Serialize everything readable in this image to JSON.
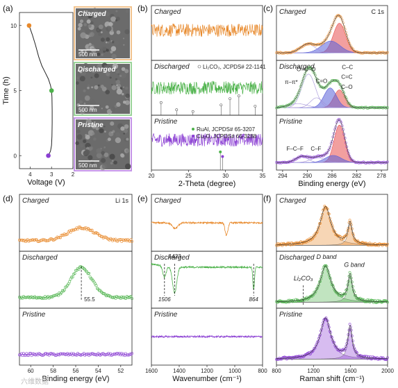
{
  "colors": {
    "charged": "#e8892b",
    "discharged": "#4cb24a",
    "pristine": "#8b3fd3",
    "red_peak": "#e85050",
    "blue_peak": "#5a60d8",
    "sem_charged_border": "#f2c38e",
    "sem_discharged_border": "#9bd49a",
    "sem_pristine_border": "#c594e8"
  },
  "watermark": "六维数据",
  "chart_data": [
    {
      "id": "a",
      "panel_label": "(a)",
      "type": "line",
      "xlabel": "Voltage (V)",
      "ylabel": "Time (h)",
      "xlim": [
        4.5,
        2.0
      ],
      "ylim": [
        -1.0,
        11.0
      ],
      "xticks": [
        4,
        3,
        2
      ],
      "yticks": [
        0,
        5,
        10
      ],
      "x": [
        4.05,
        3.9,
        3.75,
        3.6,
        3.45,
        3.3,
        3.15,
        3.05,
        3.0,
        2.98,
        2.97,
        2.97,
        2.98,
        3.0,
        3.05,
        3.15
      ],
      "y": [
        10.0,
        9.3,
        8.5,
        7.6,
        6.9,
        6.4,
        5.9,
        5.4,
        5.0,
        4.5,
        3.5,
        2.5,
        1.5,
        0.8,
        0.35,
        0.0
      ],
      "markers": [
        {
          "x": 4.05,
          "y": 10.0,
          "state": "charged"
        },
        {
          "x": 3.0,
          "y": 5.0,
          "state": "discharged"
        },
        {
          "x": 3.15,
          "y": 0.0,
          "state": "pristine"
        }
      ],
      "sem_panels": [
        {
          "state": "charged",
          "label": "Charged",
          "scalebar": "500 nm"
        },
        {
          "state": "discharged",
          "label": "Discharged",
          "scalebar": "500 nm"
        },
        {
          "state": "pristine",
          "label": "Pristine",
          "scalebar": "500 nm"
        }
      ]
    },
    {
      "id": "b",
      "panel_label": "(b)",
      "type": "line",
      "xlabel": "2-Theta (degree)",
      "xlim": [
        20,
        35
      ],
      "xticks": [
        20,
        25,
        30,
        35
      ],
      "subpanels": [
        {
          "state": "charged",
          "title": "Charged",
          "level": 0.5,
          "noise": 0.12
        },
        {
          "state": "discharged",
          "title": "Discharged",
          "level": 0.5,
          "noise": 0.12,
          "legend": "Li₂CO₃, JCPDS# 22-1141",
          "ref_lines": [
            {
              "x": 21.3,
              "h": 0.42
            },
            {
              "x": 23.4,
              "h": 0.18
            },
            {
              "x": 25.6,
              "h": 0.12
            },
            {
              "x": 29.4,
              "h": 0.34
            },
            {
              "x": 30.6,
              "h": 0.55
            },
            {
              "x": 31.8,
              "h": 0.64
            },
            {
              "x": 34.0,
              "h": 0.3
            }
          ]
        },
        {
          "state": "pristine",
          "title": "Pristine",
          "level": 0.55,
          "noise": 0.12,
          "legend": [
            "RuAl, JCPDS# 65-3207",
            "Cu₂O, JCPDS# 65-3288"
          ],
          "ref_lines": [
            {
              "x": 29.3,
              "h": 0.6,
              "state": "discharged"
            },
            {
              "x": 29.6,
              "h": 0.45,
              "state": "pristine"
            }
          ]
        }
      ]
    },
    {
      "id": "c",
      "panel_label": "(c)",
      "type": "line",
      "xlabel": "Binding energy (eV)",
      "corner_label": "C 1s",
      "xlim": [
        295,
        277
      ],
      "xticks": [
        294,
        290,
        286,
        282,
        278
      ],
      "subpanels": [
        {
          "state": "charged",
          "title": "Charged",
          "peaks": [
            {
              "c": 284.8,
              "a": 0.75,
              "w": 1.0,
              "fill": "red_peak"
            },
            {
              "c": 286.2,
              "a": 0.3,
              "w": 1.5,
              "fill": "blue_peak"
            },
            {
              "c": 289.9,
              "a": 0.22,
              "w": 1.2
            }
          ],
          "annotations": []
        },
        {
          "state": "discharged",
          "title": "Discharged",
          "peaks": [
            {
              "c": 284.8,
              "a": 0.45,
              "w": 0.9,
              "fill": "red_peak"
            },
            {
              "c": 286.3,
              "a": 0.5,
              "w": 1.0,
              "fill": "blue_peak"
            },
            {
              "c": 288.5,
              "a": 0.25,
              "w": 1.0
            },
            {
              "c": 289.8,
              "a": 0.85,
              "w": 1.1
            },
            {
              "c": 291.5,
              "a": 0.1,
              "w": 1.5
            }
          ],
          "annotations": [
            {
              "text": "π–π*",
              "x": 292.6,
              "y": 0.72
            },
            {
              "text": "O=C–O",
              "x": 290.2,
              "y": 1.05
            },
            {
              "text": "C=O",
              "x": 287.7,
              "y": 0.75
            },
            {
              "text": "C–C",
              "x": 283.5,
              "y": 1.1
            },
            {
              "text": "C=C",
              "x": 283.6,
              "y": 0.85
            },
            {
              "text": "C–O",
              "x": 283.6,
              "y": 0.6
            }
          ]
        },
        {
          "state": "pristine",
          "title": "Pristine",
          "peaks": [
            {
              "c": 284.8,
              "a": 0.95,
              "w": 0.85,
              "fill": "red_peak"
            },
            {
              "c": 285.8,
              "a": 0.18,
              "w": 1.3,
              "fill": "blue_peak"
            },
            {
              "c": 288.3,
              "a": 0.12,
              "w": 1.2
            },
            {
              "c": 290.9,
              "a": 0.15,
              "w": 1.0
            }
          ],
          "annotations": [
            {
              "text": "F–C–F",
              "x": 292.0,
              "y": 0.42
            },
            {
              "text": "C–F",
              "x": 288.6,
              "y": 0.42
            }
          ]
        }
      ]
    },
    {
      "id": "d",
      "panel_label": "(d)",
      "type": "scatter",
      "xlabel": "Binding energy (eV)",
      "corner_label": "Li 1s",
      "xlim": [
        61,
        51
      ],
      "xticks": [
        60,
        58,
        56,
        54,
        52
      ],
      "subpanels": [
        {
          "state": "charged",
          "title": "Charged",
          "peaks": [
            {
              "c": 55.5,
              "a": 0.3,
              "w": 1.2
            }
          ]
        },
        {
          "state": "discharged",
          "title": "Discharged",
          "peaks": [
            {
              "c": 55.5,
              "a": 0.7,
              "w": 0.95
            }
          ],
          "marker_line": 55.5,
          "marker_label": "55.5"
        },
        {
          "state": "pristine",
          "title": "Pristine",
          "peaks": []
        }
      ]
    },
    {
      "id": "e",
      "panel_label": "(e)",
      "type": "line",
      "xlabel": "Wavenumber (cm⁻¹)",
      "xlim": [
        1600,
        800
      ],
      "xticks": [
        1600,
        1400,
        1200,
        1000,
        800
      ],
      "subpanels": [
        {
          "state": "charged",
          "title": "Charged",
          "dips": [
            {
              "c": 1430,
              "a": 0.1,
              "w": 20
            },
            {
              "c": 1060,
              "a": 0.22,
              "w": 10
            }
          ]
        },
        {
          "state": "discharged",
          "title": "Discharged",
          "dips": [
            {
              "c": 1506,
              "a": 0.2,
              "w": 12
            },
            {
              "c": 1433,
              "a": 0.45,
              "w": 15
            },
            {
              "c": 864,
              "a": 0.4,
              "w": 6
            }
          ],
          "annotations": [
            {
              "text": "1506",
              "x": 1506
            },
            {
              "text": "1433",
              "x": 1433
            },
            {
              "text": "864",
              "x": 864
            }
          ]
        },
        {
          "state": "pristine",
          "title": "Pristine",
          "dips": []
        }
      ]
    },
    {
      "id": "f",
      "panel_label": "(f)",
      "type": "line",
      "xlabel": "Raman shift (cm⁻¹)",
      "xlim": [
        800,
        2000
      ],
      "xticks": [
        800,
        1200,
        1600,
        2000
      ],
      "subpanels": [
        {
          "state": "charged",
          "title": "Charged",
          "d_peak": {
            "c": 1330,
            "a": 0.8,
            "w": 70
          },
          "g_peak": {
            "c": 1595,
            "a": 0.45,
            "w": 28
          }
        },
        {
          "state": "discharged",
          "title": "Discharged",
          "d_peak": {
            "c": 1330,
            "a": 0.75,
            "w": 70
          },
          "g_peak": {
            "c": 1595,
            "a": 0.55,
            "w": 28
          },
          "annotations": [
            {
              "text": "D band",
              "x": 1340,
              "y": 0.95
            },
            {
              "text": "G band",
              "x": 1640,
              "y": 0.78
            },
            {
              "text": "Li₂CO₃",
              "x": 1090,
              "y": 0.5
            }
          ],
          "marker_line": 1090
        },
        {
          "state": "pristine",
          "title": "Pristine",
          "d_peak": {
            "c": 1330,
            "a": 0.85,
            "w": 70
          },
          "g_peak": {
            "c": 1595,
            "a": 0.65,
            "w": 28
          }
        }
      ]
    }
  ]
}
